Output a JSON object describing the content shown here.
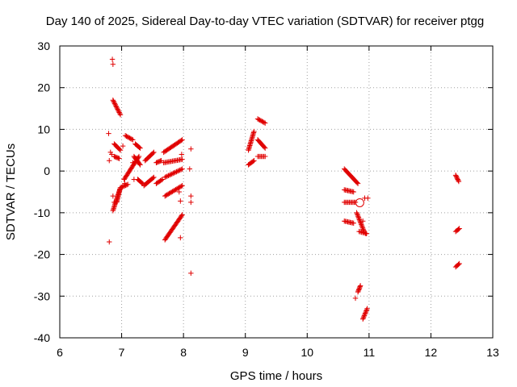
{
  "chart_data": {
    "type": "scatter",
    "title": "Day 140 of 2025, Sidereal Day-to-day VTEC variation (SDTVAR) for receiver ptgg",
    "xlabel": "GPS time / hours",
    "ylabel": "SDTVAR / TECUs",
    "xlim": [
      6,
      13
    ],
    "ylim": [
      -40,
      30
    ],
    "xticks": [
      "6",
      "7",
      "8",
      "9",
      "10",
      "11",
      "12",
      "13"
    ],
    "yticks": [
      "30",
      "20",
      "10",
      "0",
      "-10",
      "-20",
      "-30",
      "-40"
    ],
    "grid": true,
    "marker": "+",
    "color": "#e00000",
    "tracks": [
      {
        "x0": 6.86,
        "x1": 6.98,
        "y0": 17,
        "y1": 13.5
      },
      {
        "x0": 6.88,
        "x1": 6.98,
        "y0": 6.5,
        "y1": 5
      },
      {
        "x0": 6.86,
        "x1": 6.98,
        "y0": -9.5,
        "y1": -4
      },
      {
        "x0": 6.98,
        "x1": 7.1,
        "y0": -4,
        "y1": -3.2
      },
      {
        "x0": 6.92,
        "x1": 6.97,
        "y0": -7.5,
        "y1": -4.5
      },
      {
        "x0": 6.88,
        "x1": 6.96,
        "y0": 3.5,
        "y1": 3
      },
      {
        "x0": 7.06,
        "x1": 7.18,
        "y0": 8.5,
        "y1": 7.5
      },
      {
        "x0": 7.04,
        "x1": 7.28,
        "y0": -2,
        "y1": 3.5
      },
      {
        "x0": 7.22,
        "x1": 7.3,
        "y0": 6.5,
        "y1": 5.5
      },
      {
        "x0": 7.2,
        "x1": 7.3,
        "y0": 3.5,
        "y1": 1.5
      },
      {
        "x0": 7.26,
        "x1": 7.34,
        "y0": -2,
        "y1": -3
      },
      {
        "x0": 7.38,
        "x1": 7.52,
        "y0": 2.5,
        "y1": 4.5
      },
      {
        "x0": 7.36,
        "x1": 7.52,
        "y0": -3.5,
        "y1": -1.5
      },
      {
        "x0": 7.56,
        "x1": 7.64,
        "y0": 2,
        "y1": 2.5
      },
      {
        "x0": 7.56,
        "x1": 7.66,
        "y0": -3,
        "y1": -2
      },
      {
        "x0": 7.68,
        "x1": 7.98,
        "y0": 4.5,
        "y1": 7.5
      },
      {
        "x0": 7.68,
        "x1": 7.98,
        "y0": 2,
        "y1": 2.8
      },
      {
        "x0": 7.7,
        "x1": 7.98,
        "y0": -1.5,
        "y1": 0.5
      },
      {
        "x0": 7.7,
        "x1": 7.98,
        "y0": -6,
        "y1": -3.5
      },
      {
        "x0": 7.7,
        "x1": 7.98,
        "y0": -16.5,
        "y1": -10.5
      },
      {
        "x0": 9.05,
        "x1": 9.14,
        "y0": 1.5,
        "y1": 2.5
      },
      {
        "x0": 9.05,
        "x1": 9.14,
        "y0": 5,
        "y1": 9.5
      },
      {
        "x0": 9.2,
        "x1": 9.32,
        "y0": 3.5,
        "y1": 3.5
      },
      {
        "x0": 9.2,
        "x1": 9.32,
        "y0": 12.5,
        "y1": 11.5
      },
      {
        "x0": 9.2,
        "x1": 9.32,
        "y0": 7.5,
        "y1": 5.5
      },
      {
        "x0": 10.6,
        "x1": 10.82,
        "y0": 0.5,
        "y1": -3
      },
      {
        "x0": 10.6,
        "x1": 10.75,
        "y0": -4.5,
        "y1": -5
      },
      {
        "x0": 10.6,
        "x1": 10.78,
        "y0": -7.5,
        "y1": -7.5
      },
      {
        "x0": 10.6,
        "x1": 10.75,
        "y0": -12,
        "y1": -12.5
      },
      {
        "x0": 10.8,
        "x1": 10.92,
        "y0": -10,
        "y1": -14.5
      },
      {
        "x0": 10.84,
        "x1": 10.96,
        "y0": -14.5,
        "y1": -15
      },
      {
        "x0": 10.82,
        "x1": 10.86,
        "y0": -29,
        "y1": -27.5
      },
      {
        "x0": 10.9,
        "x1": 10.97,
        "y0": -35.5,
        "y1": -33
      },
      {
        "x0": 12.4,
        "x1": 12.45,
        "y0": -1,
        "y1": -2.5
      },
      {
        "x0": 12.4,
        "x1": 12.46,
        "y0": -14.5,
        "y1": -13.8
      },
      {
        "x0": 12.4,
        "x1": 12.46,
        "y0": -23,
        "y1": -22.2
      }
    ],
    "points": [
      [
        6.79,
        9
      ],
      [
        6.82,
        4.5
      ],
      [
        6.8,
        2.5
      ],
      [
        6.8,
        -17
      ],
      [
        6.85,
        26.8
      ],
      [
        6.86,
        25.6
      ],
      [
        6.84,
        4
      ],
      [
        6.86,
        -6
      ],
      [
        6.88,
        -7.5
      ],
      [
        7.02,
        6
      ],
      [
        7.05,
        -3
      ],
      [
        7.2,
        -2
      ],
      [
        7.18,
        2
      ],
      [
        7.93,
        -5
      ],
      [
        7.95,
        -7.2
      ],
      [
        7.95,
        -16
      ],
      [
        7.97,
        4
      ],
      [
        8.1,
        0.5
      ],
      [
        8.12,
        5.3
      ],
      [
        8.12,
        -6
      ],
      [
        8.12,
        -7.5
      ],
      [
        8.12,
        -24.5
      ],
      [
        10.78,
        -30.5
      ],
      [
        10.9,
        -12
      ],
      [
        10.93,
        -6.5
      ],
      [
        10.98,
        -6.5
      ],
      [
        10.95,
        -15
      ]
    ],
    "annotation": {
      "x": 10.85,
      "y": -7.6,
      "type": "circle"
    }
  }
}
